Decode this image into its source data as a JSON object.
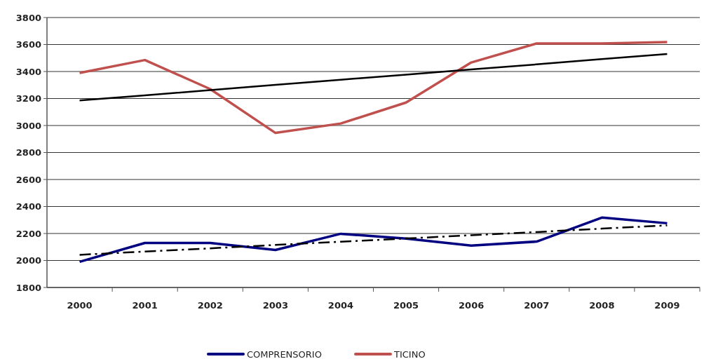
{
  "chart_data": {
    "type": "line",
    "categories": [
      "2000",
      "2001",
      "2002",
      "2003",
      "2004",
      "2005",
      "2006",
      "2007",
      "2008",
      "2009"
    ],
    "series": [
      {
        "name": "COMPRENSORIO",
        "color": "#000080",
        "values": [
          1990,
          2130,
          2130,
          2078,
          2198,
          2162,
          2110,
          2140,
          2318,
          2276
        ]
      },
      {
        "name": "TICINO",
        "color": "#c0504d",
        "values": [
          3390,
          3485,
          3270,
          2945,
          3015,
          3170,
          3467,
          3608,
          3608,
          3618
        ]
      },
      {
        "type": "line",
        "color": "#000000",
        "values": [
          3186,
          3224,
          3262,
          3301,
          3339,
          3377,
          3415,
          3453,
          3492,
          3530
        ],
        "line_style": "solid"
      },
      {
        "type": "line",
        "color": "#000000",
        "values": [
          2042,
          2066,
          2090,
          2115,
          2139,
          2163,
          2187,
          2211,
          2236,
          2260
        ],
        "line_style": "dashed"
      }
    ],
    "ylim": [
      1800,
      3800
    ],
    "yticks": [
      1800,
      2000,
      2200,
      2400,
      2600,
      2800,
      3000,
      3200,
      3400,
      3600,
      3800
    ],
    "grid": "y",
    "legend": "bottom",
    "marker": "none",
    "line_style": "solid"
  }
}
